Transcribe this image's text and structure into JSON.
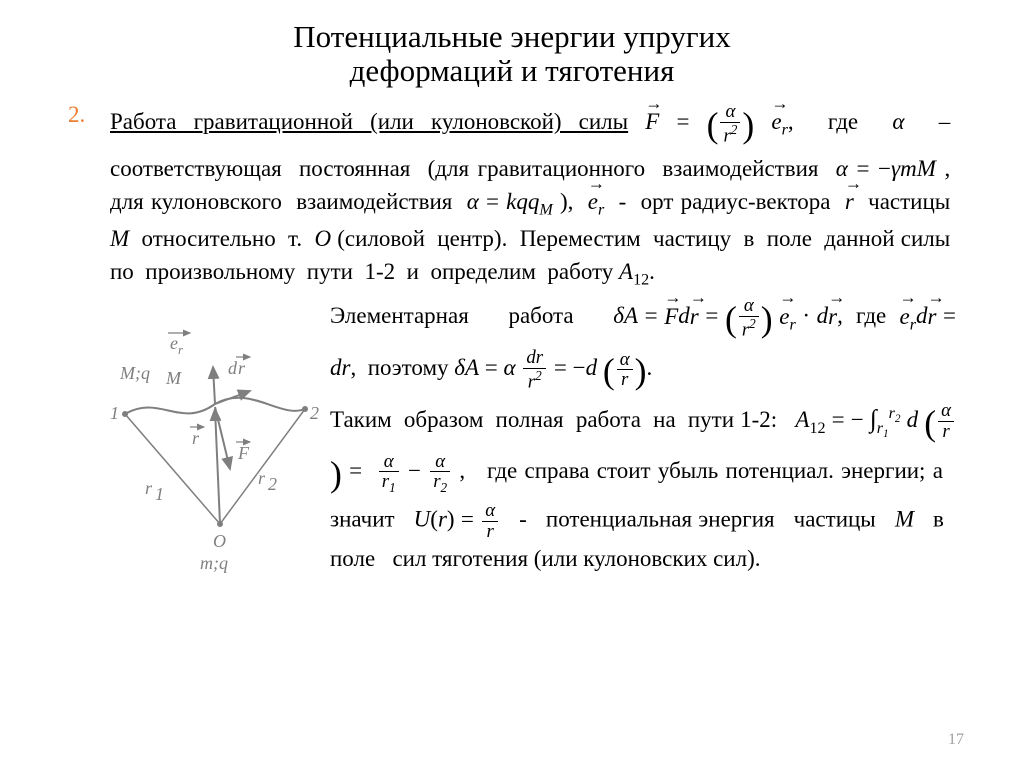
{
  "title_line1": "Потенциальные энергии упругих",
  "title_line2": "деформаций и тяготения",
  "list_number": "2.",
  "para1_html": "<span class='u'>Работа гравитационной (или кулоновской) силы</span> <span class='vec math-i'>F</span> = <span class='big-paren'>(</span><span class='frac'><span class='fn math-i'>α</span><span class='fd math-i'>r<sup>2</sup></span></span><span class='big-paren'>)</span> <span class='vec math-i'>e<sub>r</sub></span>,&nbsp; где&nbsp; <span class='math-i'>α</span>&nbsp; –&nbsp; соответствующая&nbsp; постоянная&nbsp; (для гравитационного&nbsp; взаимодействия&nbsp; <span class='math-i'>α</span> = −<span class='math-i'>γmM</span> ,&nbsp; для кулоновского&nbsp; взаимодействия&nbsp; <span class='math-i'>α</span> = <span class='math-i'>kqq<sub>M</sub></span> ),&nbsp; <span class='vec math-i'>e<sub>r</sub></span> &nbsp;-&nbsp; орт радиус-вектора&nbsp; <span class='vec math-i'>r</span>&nbsp; частицы&nbsp; <span class='math-i'>M</span>&nbsp; относительно&nbsp; т.&nbsp; <span class='math-i'>O</span> (силовой&nbsp; центр).&nbsp; Переместим&nbsp; частицу&nbsp; в&nbsp; поле&nbsp; данной силы&nbsp; по&nbsp; произвольному&nbsp; пути&nbsp; 1-2&nbsp; и&nbsp; определим&nbsp; работу <span class='math-i'>A</span><sub>12</sub>.",
  "para2_html": "Элементарная&nbsp;&nbsp;&nbsp;&nbsp;&nbsp; работа&nbsp;&nbsp;&nbsp;&nbsp;&nbsp; <span class='math-i'>δA</span> = <span class='vec math-i'>F</span><span class='math-i'>d</span><span class='vec math-i'>r</span> = <span class='big-paren'>(</span><span class='frac'><span class='fn math-i'>α</span><span class='fd math-i'>r<sup>2</sup></span></span><span class='big-paren'>)</span> <span class='vec math-i'>e<sub>r</sub></span> · <span class='math-i'>d</span><span class='vec math-i'>r</span>,&nbsp; где&nbsp; <span class='vec math-i'>e<sub>r</sub></span><span class='math-i'>d</span><span class='vec math-i'>r</span> = <span class='math-i'>dr</span>,&nbsp; поэтому <span class='math-i'>δA</span> = <span class='math-i'>α</span> <span class='frac'><span class='fn math-i'>dr</span><span class='fd math-i'>r<sup>2</sup></span></span> = −<span class='math-i'>d</span> <span class='big-paren'>(</span><span class='frac'><span class='fn math-i'>α</span><span class='fd math-i'>r</span></span><span class='big-paren'>)</span>.<br>Таким&nbsp; образом&nbsp; полная&nbsp; работа&nbsp; на&nbsp; пути 1-2:&nbsp;&nbsp; <span class='math-i'>A</span><sub>12</sub> = − <span class='int'>∫</span><sub class='math-i'>r<sub>1</sub></sub><sup class='math-i'>r<sub>2</sub></sup> <span class='math-i'>d</span> <span class='big-paren'>(</span><span class='frac'><span class='fn math-i'>α</span><span class='fd math-i'>r</span></span><span class='big-paren'>)</span> =&nbsp; <span class='frac'><span class='fn math-i'>α</span><span class='fd math-i'>r<sub>1</sub></span></span> − <span class='frac'><span class='fn math-i'>α</span><span class='fd math-i'>r<sub>2</sub></span></span> ,&nbsp;&nbsp; где справа стоит убыль потенциал. энергии; а&nbsp;&nbsp; значит&nbsp;&nbsp; <span class='math-i'>U</span>(<span class='math-i'>r</span>) = <span class='frac'><span class='fn math-i'>α</span><span class='fd math-i'>r</span></span>&nbsp;&nbsp; -&nbsp;&nbsp; потенциальная энергия&nbsp;&nbsp; частицы&nbsp;&nbsp; <span class='math-i'>M</span>&nbsp;&nbsp; в&nbsp;&nbsp; поле&nbsp;&nbsp; сил тяготения (или кулоновских сил).",
  "diagram": {
    "labels": {
      "er": "e_r",
      "MqM": "M;q_M",
      "dr": "dr⃗",
      "one": "1",
      "two": "2",
      "r": "r⃗",
      "F": "F⃗",
      "r1": "r_1",
      "r2": "r_2",
      "O": "O",
      "mq": "m;q"
    },
    "stroke": "#7f7f7f"
  },
  "page_number": "17"
}
